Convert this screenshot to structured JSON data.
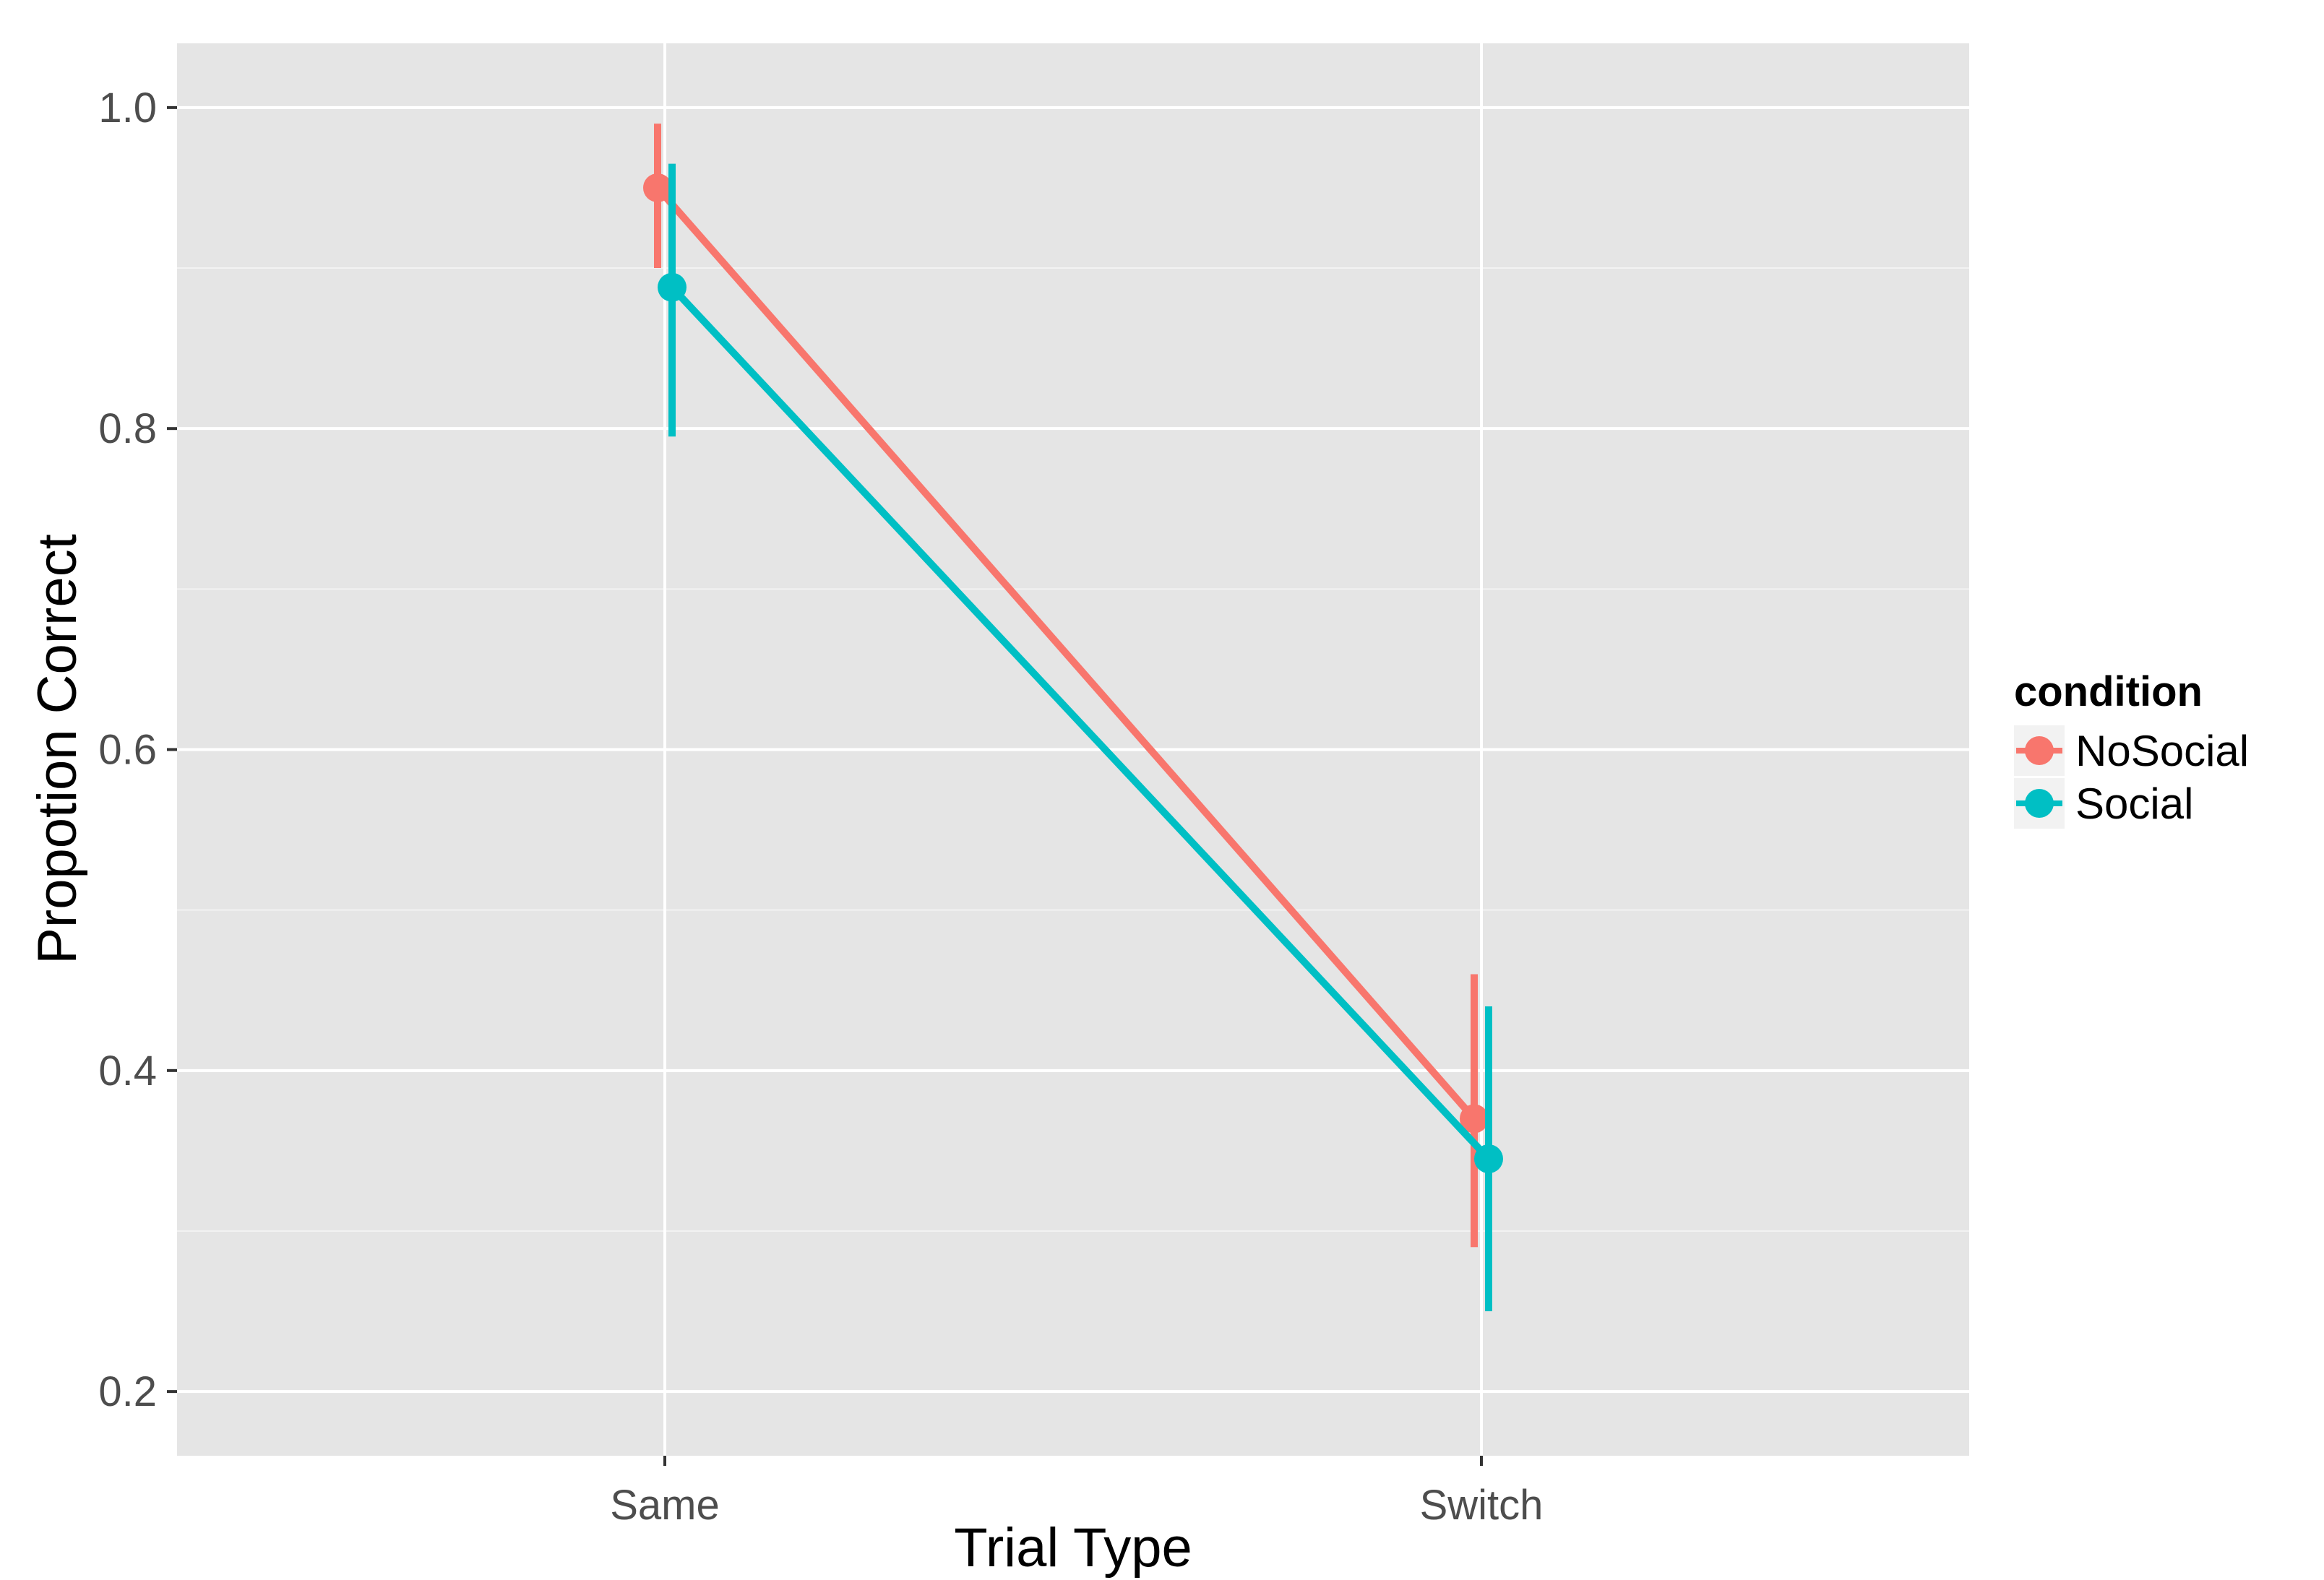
{
  "chart_data": {
    "type": "line",
    "title": "",
    "xlabel": "Trial Type",
    "ylabel": "Propotion Correct",
    "categories": [
      "Same",
      "Switch"
    ],
    "ylim": [
      0.16,
      1.04
    ],
    "yticks": [
      0.2,
      0.4,
      0.6,
      0.8,
      1.0
    ],
    "ytick_labels": [
      "0.2",
      "0.4",
      "0.6",
      "0.8",
      "1.0"
    ],
    "grid": true,
    "legend": {
      "title": "condition",
      "position": "right"
    },
    "series": [
      {
        "name": "NoSocial",
        "color": "#F8766D",
        "values": [
          0.95,
          0.37
        ],
        "error_low": [
          0.9,
          0.29
        ],
        "error_high": [
          0.99,
          0.46
        ]
      },
      {
        "name": "Social",
        "color": "#00BFC4",
        "values": [
          0.888,
          0.345
        ],
        "error_low": [
          0.795,
          0.25
        ],
        "error_high": [
          0.965,
          0.44
        ]
      }
    ],
    "panel_background": "#E5E5E5",
    "gridline_color": "#FFFFFF"
  }
}
